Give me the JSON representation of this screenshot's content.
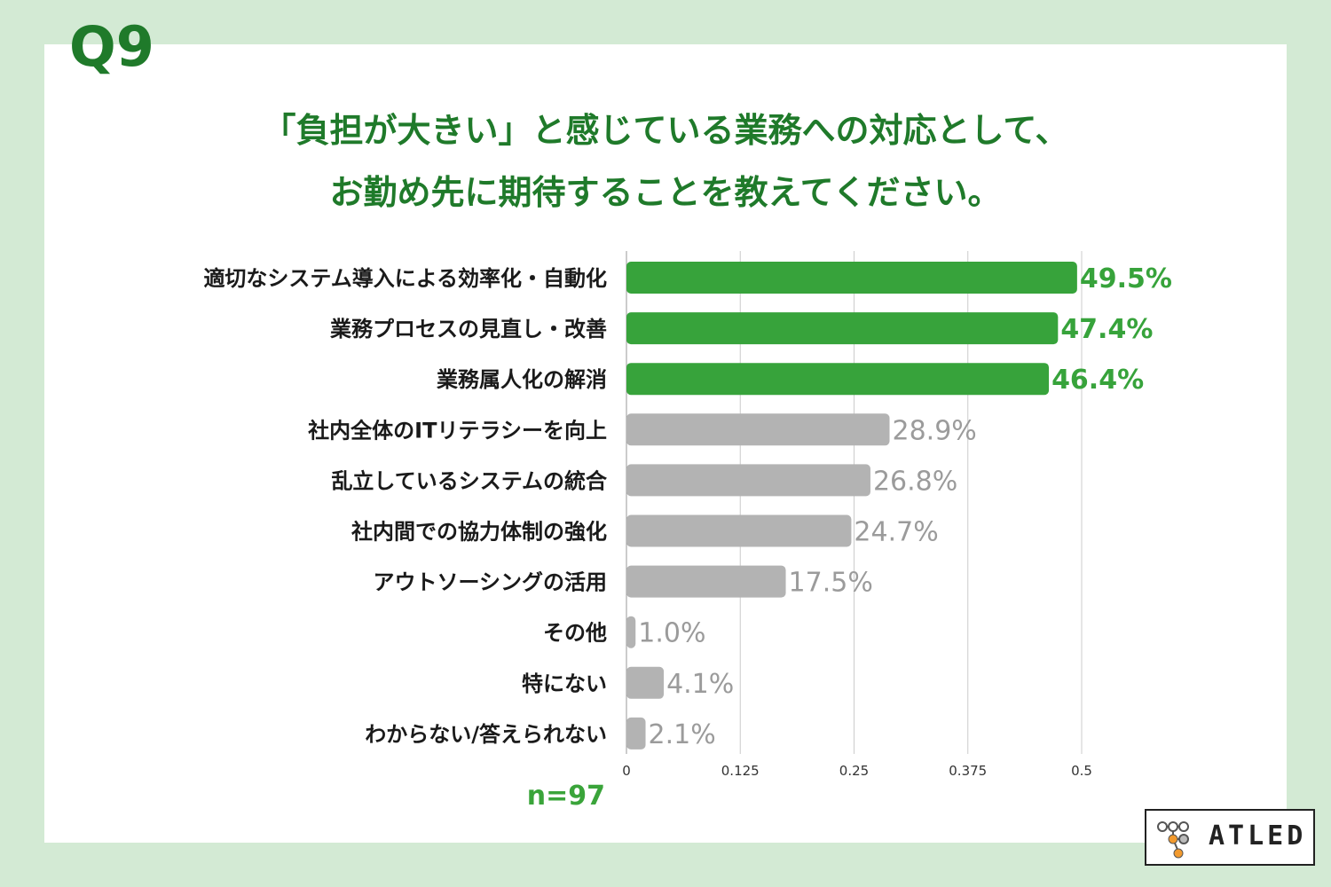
{
  "header": {
    "q_number": "Q9",
    "question_line1": "「負担が大きい」と感じている業務への対応として、",
    "question_line2": "お勤め先に期待することを教えてください。"
  },
  "chart_data": {
    "type": "bar",
    "orientation": "horizontal",
    "categories": [
      "適切なシステム導入による効率化・自動化",
      "業務プロセスの見直し・改善",
      "業務属人化の解消",
      "社内全体のITリテラシーを向上",
      "乱立しているシステムの統合",
      "社内間での協力体制の強化",
      "アウトソーシングの活用",
      "その他",
      "特にない",
      "わからない/答えられない"
    ],
    "values": [
      0.495,
      0.474,
      0.464,
      0.289,
      0.268,
      0.247,
      0.175,
      0.01,
      0.041,
      0.021
    ],
    "value_labels": [
      "49.5%",
      "47.4%",
      "46.4%",
      "28.9%",
      "26.8%",
      "24.7%",
      "17.5%",
      "1.0%",
      "4.1%",
      "2.1%"
    ],
    "highlight_count": 3,
    "xlim": [
      0,
      0.5
    ],
    "xticks": [
      0,
      0.125,
      0.25,
      0.375,
      0.5
    ],
    "xtick_labels": [
      "0",
      "0.125",
      "0.25",
      "0.375",
      "0.5"
    ],
    "grid": true,
    "colors": {
      "highlight": "#37a33b",
      "normal": "#b3b3b3",
      "highlight_text": "#37a33b",
      "normal_text": "#9b9b9b",
      "grid": "#cccccc"
    }
  },
  "footer": {
    "n_label": "n=97",
    "logo_text": "ATLED"
  }
}
